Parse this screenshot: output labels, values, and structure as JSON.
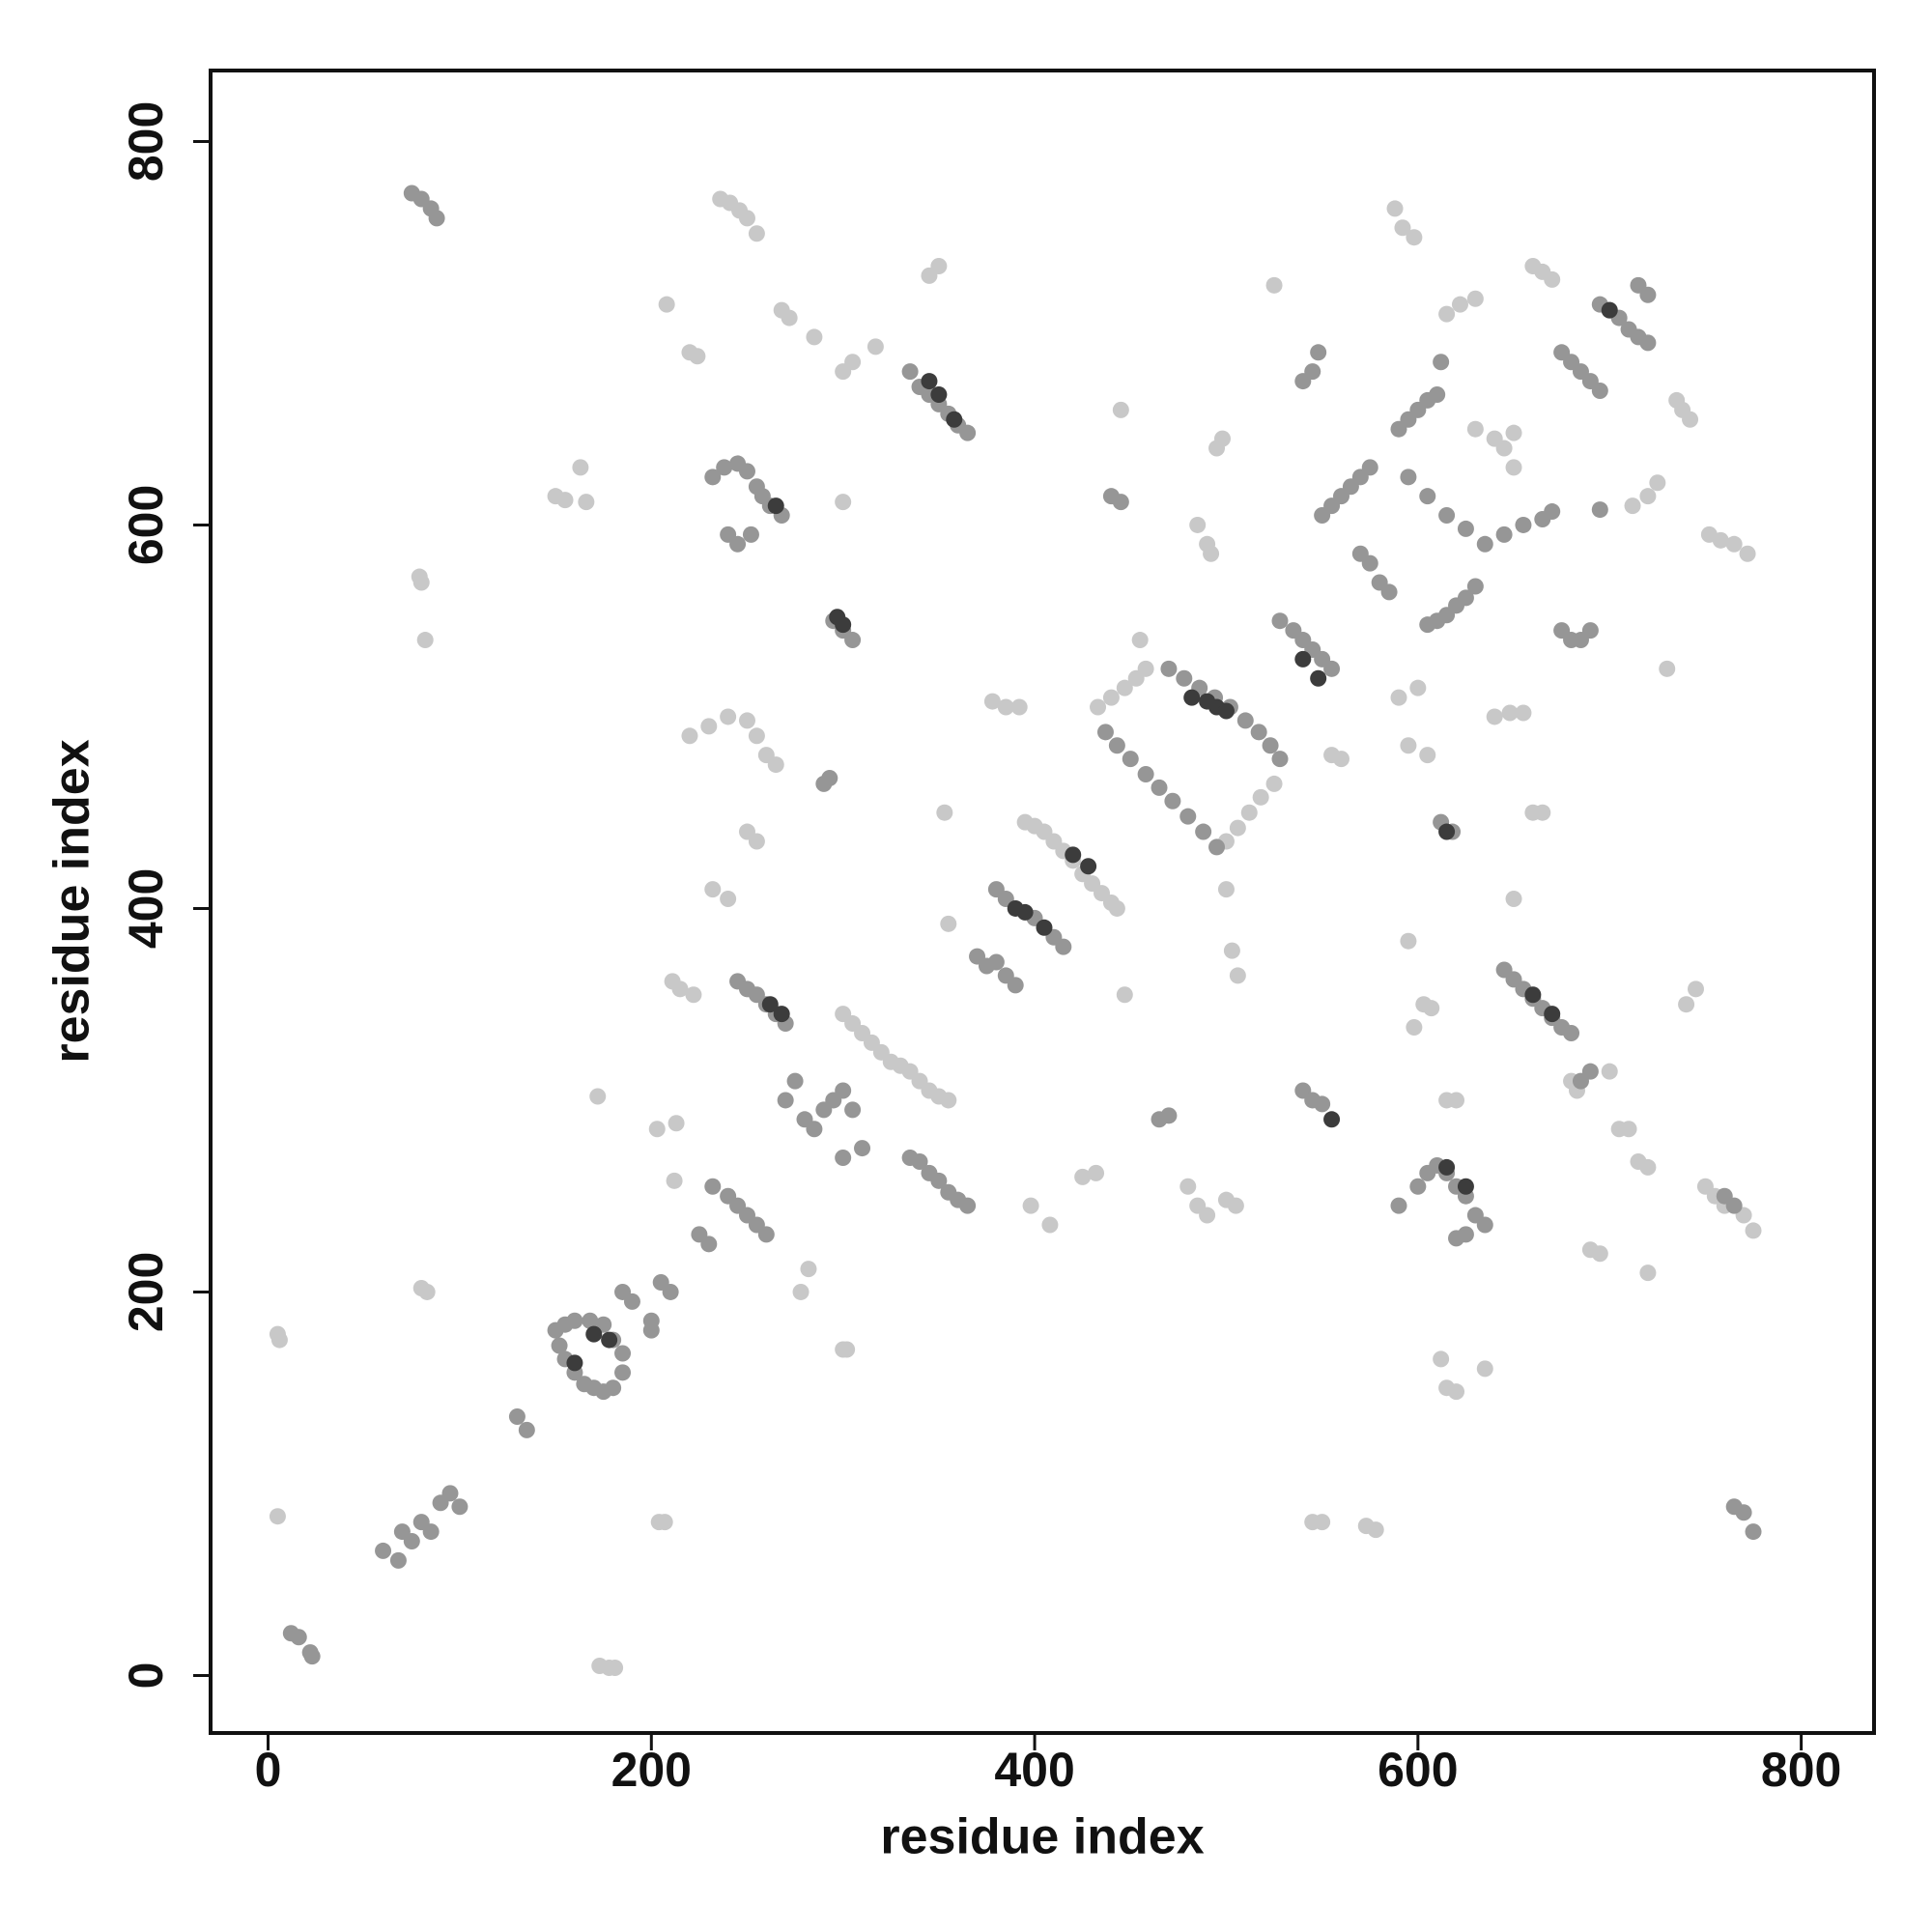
{
  "chart_data": {
    "type": "scatter",
    "xlabel": "residue index",
    "ylabel": "residue index",
    "xlim": [
      -30,
      838
    ],
    "ylim": [
      -30,
      837
    ],
    "xticks": [
      0,
      200,
      400,
      600,
      800
    ],
    "yticks": [
      0,
      200,
      400,
      600,
      800
    ],
    "series": [
      {
        "color": "#c8c8c8",
        "x": [
          5,
          6,
          5,
          83,
          80,
          82,
          80,
          79,
          173,
          178,
          181,
          172,
          150,
          155,
          163,
          166,
          208,
          220,
          224,
          211,
          215,
          222,
          203,
          213,
          212,
          204,
          207,
          236,
          241,
          246,
          250,
          255,
          268,
          272,
          285,
          300,
          300,
          305,
          317,
          300,
          305,
          310,
          315,
          320,
          325,
          330,
          335,
          340,
          345,
          350,
          355,
          345,
          350,
          353,
          355,
          378,
          385,
          392,
          395,
          400,
          405,
          410,
          415,
          420,
          425,
          430,
          435,
          440,
          443,
          425,
          432,
          398,
          408,
          445,
          447,
          455,
          433,
          440,
          447,
          453,
          458,
          525,
          518,
          512,
          506,
          500,
          485,
          490,
          492,
          495,
          498,
          500,
          503,
          506,
          525,
          485,
          490,
          500,
          505,
          480,
          573,
          578,
          545,
          550,
          588,
          592,
          598,
          590,
          600,
          595,
          605,
          595,
          598,
          603,
          607,
          615,
          622,
          630,
          612,
          615,
          620,
          635,
          630,
          640,
          645,
          650,
          650,
          660,
          665,
          670,
          660,
          665,
          650,
          640,
          648,
          655,
          700,
          705,
          710,
          715,
          720,
          720,
          725,
          720,
          712,
          735,
          738,
          742,
          730,
          740,
          745,
          752,
          758,
          765,
          772,
          750,
          755,
          760,
          770,
          775,
          680,
          683,
          690,
          695,
          615,
          620,
          220,
          230,
          240,
          250,
          255,
          260,
          265,
          250,
          255,
          240,
          232,
          555,
          560,
          300,
          302,
          282,
          278
        ],
        "y": [
          178,
          175,
          83,
          200,
          202,
          540,
          570,
          573,
          5,
          4,
          4,
          302,
          615,
          613,
          630,
          612,
          715,
          690,
          688,
          362,
          358,
          355,
          285,
          288,
          258,
          80,
          80,
          770,
          768,
          764,
          760,
          752,
          712,
          708,
          698,
          612,
          680,
          685,
          693,
          345,
          340,
          335,
          330,
          325,
          320,
          318,
          315,
          310,
          305,
          302,
          300,
          730,
          735,
          450,
          392,
          508,
          505,
          505,
          445,
          443,
          440,
          435,
          430,
          425,
          418,
          413,
          408,
          403,
          400,
          260,
          262,
          245,
          235,
          660,
          355,
          540,
          505,
          510,
          515,
          520,
          525,
          465,
          458,
          450,
          442,
          435,
          600,
          590,
          585,
          640,
          645,
          410,
          378,
          365,
          725,
          245,
          240,
          248,
          245,
          255,
          78,
          76,
          80,
          80,
          765,
          755,
          750,
          510,
          515,
          485,
          480,
          383,
          338,
          350,
          348,
          710,
          715,
          718,
          165,
          150,
          148,
          160,
          650,
          645,
          640,
          648,
          630,
          735,
          732,
          728,
          450,
          450,
          405,
          500,
          502,
          502,
          315,
          285,
          285,
          268,
          265,
          210,
          622,
          615,
          610,
          665,
          660,
          655,
          525,
          350,
          358,
          595,
          592,
          590,
          585,
          255,
          250,
          245,
          240,
          232,
          310,
          305,
          222,
          220,
          300,
          300,
          490,
          495,
          500,
          498,
          490,
          480,
          475,
          440,
          435,
          405,
          410,
          480,
          478,
          170,
          170,
          212,
          200
        ]
      },
      {
        "color": "#969696",
        "x": [
          75,
          80,
          85,
          88,
          60,
          68,
          70,
          75,
          80,
          85,
          90,
          95,
          100,
          12,
          16,
          22,
          23,
          130,
          135,
          150,
          152,
          155,
          160,
          165,
          170,
          175,
          180,
          185,
          185,
          180,
          175,
          168,
          160,
          155,
          185,
          190,
          200,
          205,
          210,
          200,
          225,
          230,
          232,
          240,
          245,
          250,
          255,
          260,
          232,
          238,
          245,
          250,
          255,
          258,
          262,
          268,
          245,
          240,
          252,
          245,
          250,
          255,
          260,
          265,
          270,
          270,
          275,
          280,
          285,
          290,
          295,
          300,
          305,
          310,
          300,
          290,
          293,
          295,
          300,
          305,
          335,
          340,
          345,
          350,
          355,
          360,
          365,
          335,
          340,
          345,
          350,
          355,
          360,
          365,
          370,
          375,
          380,
          385,
          390,
          380,
          385,
          400,
          410,
          415,
          440,
          445,
          465,
          470,
          528,
          535,
          540,
          545,
          550,
          555,
          540,
          545,
          548,
          540,
          545,
          550,
          550,
          555,
          560,
          565,
          570,
          575,
          570,
          575,
          580,
          585,
          590,
          595,
          600,
          605,
          610,
          595,
          605,
          615,
          625,
          635,
          645,
          655,
          665,
          670,
          605,
          610,
          615,
          620,
          625,
          630,
          612,
          618,
          590,
          600,
          605,
          610,
          615,
          620,
          625,
          630,
          635,
          625,
          620,
          645,
          650,
          655,
          660,
          665,
          670,
          675,
          680,
          675,
          680,
          685,
          690,
          675,
          680,
          685,
          690,
          695,
          695,
          700,
          705,
          710,
          715,
          720,
          715,
          720,
          765,
          770,
          775,
          760,
          765,
          685,
          690,
          695,
          612,
          470,
          478,
          486,
          494,
          502,
          510,
          517,
          523,
          528,
          495,
          488,
          480,
          472,
          465,
          458,
          450,
          443,
          437
        ],
        "y": [
          773,
          770,
          765,
          760,
          65,
          60,
          75,
          70,
          80,
          75,
          90,
          95,
          88,
          22,
          20,
          12,
          10,
          135,
          128,
          180,
          172,
          165,
          158,
          152,
          150,
          148,
          150,
          158,
          168,
          175,
          183,
          185,
          185,
          183,
          200,
          195,
          185,
          205,
          200,
          180,
          230,
          225,
          255,
          250,
          245,
          240,
          235,
          230,
          625,
          630,
          632,
          628,
          620,
          615,
          610,
          605,
          590,
          595,
          595,
          362,
          358,
          355,
          350,
          345,
          340,
          300,
          310,
          290,
          285,
          295,
          300,
          305,
          295,
          275,
          270,
          465,
          468,
          550,
          545,
          540,
          680,
          672,
          668,
          663,
          658,
          652,
          648,
          270,
          268,
          262,
          258,
          252,
          248,
          245,
          375,
          370,
          372,
          365,
          360,
          410,
          405,
          395,
          385,
          380,
          615,
          612,
          290,
          292,
          550,
          545,
          540,
          535,
          530,
          525,
          675,
          680,
          690,
          305,
          300,
          298,
          605,
          610,
          615,
          620,
          625,
          630,
          585,
          580,
          570,
          565,
          650,
          655,
          660,
          665,
          668,
          625,
          615,
          605,
          598,
          590,
          595,
          600,
          603,
          607,
          548,
          550,
          553,
          558,
          562,
          568,
          445,
          440,
          245,
          255,
          262,
          266,
          262,
          255,
          250,
          240,
          235,
          230,
          228,
          368,
          363,
          358,
          353,
          348,
          343,
          338,
          335,
          545,
          540,
          540,
          545,
          690,
          685,
          680,
          675,
          670,
          715,
          712,
          708,
          702,
          698,
          695,
          725,
          720,
          88,
          85,
          75,
          250,
          245,
          310,
          315,
          608,
          685,
          525,
          520,
          515,
          510,
          505,
          498,
          492,
          485,
          478,
          432,
          440,
          448,
          456,
          463,
          470,
          478,
          485,
          492
        ]
      },
      {
        "color": "#3c3c3c",
        "x": [
          160,
          170,
          178,
          265,
          268,
          262,
          297,
          300,
          345,
          350,
          358,
          390,
          395,
          405,
          420,
          428,
          482,
          490,
          495,
          500,
          540,
          548,
          555,
          615,
          660,
          670,
          615,
          625,
          700
        ],
        "y": [
          163,
          178,
          175,
          610,
          345,
          350,
          552,
          548,
          675,
          668,
          655,
          400,
          398,
          390,
          428,
          422,
          510,
          508,
          505,
          503,
          530,
          520,
          290,
          440,
          355,
          345,
          265,
          255,
          712
        ]
      }
    ]
  }
}
